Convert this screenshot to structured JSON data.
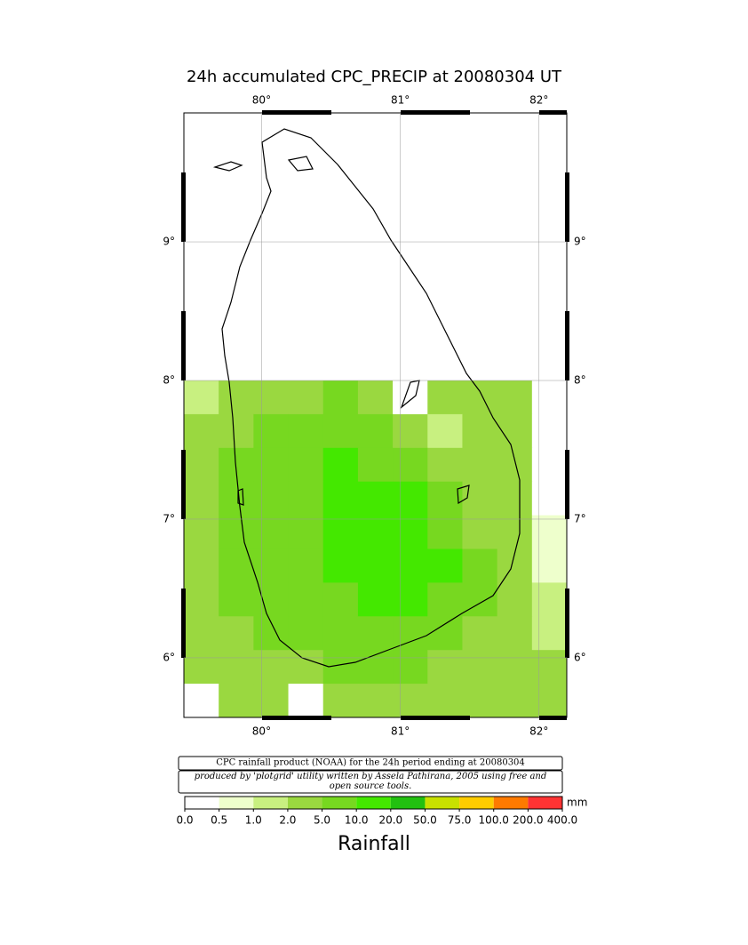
{
  "chart_data": {
    "type": "map",
    "title": "24h accumulated CPC_PRECIP  at 20080304 UT",
    "xlim": [
      79.44,
      82.2
    ],
    "ylim": [
      5.57,
      9.93
    ],
    "xticks": [
      {
        "value": 80,
        "label": "80°"
      },
      {
        "value": 81,
        "label": "81°"
      },
      {
        "value": 82,
        "label": "82°"
      }
    ],
    "yticks": [
      {
        "value": 6,
        "label": "6°"
      },
      {
        "value": 7,
        "label": "7°"
      },
      {
        "value": 8,
        "label": "8°"
      },
      {
        "value": 9,
        "label": "9°"
      }
    ],
    "credit_line1": "CPC rainfall product (NOAA) for the 24h period ending at 20080304",
    "credit_line2": "produced by 'plotgrid' utility written by Assela Pathirana, 2005 using free and open source tools.",
    "colorbar": {
      "unit": "mm",
      "label": "Rainfall",
      "ticks": [
        {
          "value": 0,
          "label": "0.0"
        },
        {
          "value": 0.5,
          "label": "0.5"
        },
        {
          "value": 1,
          "label": "1.0"
        },
        {
          "value": 2,
          "label": "2.0"
        },
        {
          "value": 5,
          "label": "5.0"
        },
        {
          "value": 10,
          "label": "10.0"
        },
        {
          "value": 20,
          "label": "20.0"
        },
        {
          "value": 50,
          "label": "50.0"
        },
        {
          "value": 75,
          "label": "75.0"
        },
        {
          "value": 100,
          "label": "100.0"
        },
        {
          "value": 200,
          "label": "200.0"
        },
        {
          "value": 400,
          "label": "400.0"
        }
      ],
      "colors": [
        "#ffffff",
        "#eeffcc",
        "#c8f080",
        "#9ad840",
        "#77d820",
        "#44e800",
        "#22c010",
        "#c8e000",
        "#ffcc00",
        "#ff7a00",
        "#ff3333"
      ]
    },
    "rainfall": [
      [
        1.5,
        2,
        3,
        4,
        5,
        4,
        0.4,
        2,
        4,
        3,
        0.4
      ],
      [
        3,
        4,
        5,
        6,
        7,
        6,
        3,
        1.5,
        4,
        3,
        0.4
      ],
      [
        3,
        5,
        7,
        8,
        10,
        9,
        8,
        3,
        3,
        2,
        0.4
      ],
      [
        3,
        5,
        7,
        9,
        11,
        12,
        10,
        6,
        3,
        2,
        0.4
      ],
      [
        3,
        5,
        7,
        9,
        11,
        12,
        11,
        8,
        4,
        2,
        0.7
      ],
      [
        3,
        5,
        7,
        9,
        10,
        12,
        12,
        10,
        6,
        3,
        0.7
      ],
      [
        3,
        5,
        7,
        8,
        9,
        10,
        11,
        9,
        5,
        3,
        1.5
      ],
      [
        3,
        4,
        5,
        6,
        7,
        8,
        8,
        6,
        4,
        3,
        1.5
      ],
      [
        3,
        3,
        2,
        4,
        5,
        5,
        5,
        4,
        3,
        3,
        2
      ],
      [
        0.4,
        2,
        3,
        0.3,
        3,
        4,
        2,
        3,
        3,
        3,
        2
      ]
    ]
  }
}
